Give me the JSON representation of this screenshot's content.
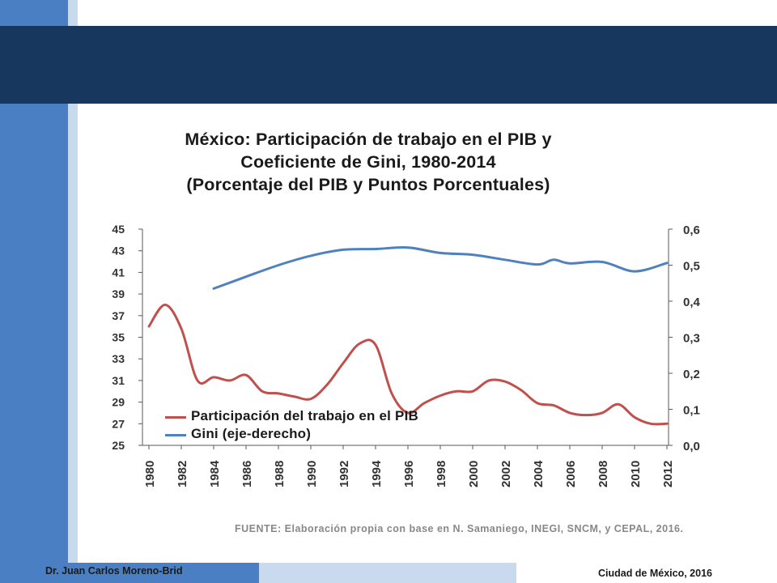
{
  "footer": {
    "author": "Dr. Juan Carlos Moreno-Brid",
    "place": "Ciudad de México, 2016"
  },
  "source": "FUENTE: Elaboración propia con base en N. Samaniego, INEGI, SNCM, y CEPAL, 2016.",
  "colors": {
    "labor_share": "#c0504d",
    "gini": "#4f81bd",
    "header": "#17375e",
    "accent": "#4a7fc4"
  },
  "chart_data": {
    "type": "line",
    "title_lines": [
      "México: Participación de trabajo en el PIB y",
      "Coeficiente de Gini, 1980-2014",
      "(Porcentaje del PIB y Puntos Porcentuales)"
    ],
    "x_tick_labels": [
      "1980",
      "1982",
      "1984",
      "1986",
      "1988",
      "1990",
      "1992",
      "1994",
      "1996",
      "1998",
      "2000",
      "2002",
      "2004",
      "2006",
      "2008",
      "2010",
      "2012"
    ],
    "y_left": {
      "min": 25,
      "max": 45,
      "ticks": [
        "25",
        "27",
        "29",
        "31",
        "33",
        "35",
        "37",
        "39",
        "41",
        "43",
        "45"
      ]
    },
    "y_right": {
      "min": 0,
      "max": 0.6,
      "ticks": [
        "0,0",
        "0,1",
        "0,2",
        "0,3",
        "0,4",
        "0,5",
        "0,6"
      ]
    },
    "legend_position": "bottom-left",
    "series": [
      {
        "name": "Participación del trabajo en el PIB",
        "axis": "left",
        "x": [
          1980,
          1981,
          1982,
          1983,
          1984,
          1985,
          1986,
          1987,
          1988,
          1989,
          1990,
          1991,
          1992,
          1993,
          1994,
          1995,
          1996,
          1997,
          1998,
          1999,
          2000,
          2001,
          2002,
          2003,
          2004,
          2005,
          2006,
          2007,
          2008,
          2009,
          2010,
          2011,
          2012
        ],
        "values": [
          36.0,
          38.0,
          35.8,
          31.0,
          31.3,
          31.0,
          31.5,
          30.0,
          29.8,
          29.5,
          29.3,
          30.6,
          32.6,
          34.4,
          34.3,
          29.8,
          28.0,
          28.9,
          29.6,
          30.0,
          30.0,
          31.0,
          30.9,
          30.1,
          28.9,
          28.7,
          28.0,
          27.8,
          28.0,
          28.8,
          27.6,
          27.0,
          27.0
        ]
      },
      {
        "name": "Gini (eje-derecho)",
        "axis": "right",
        "x": [
          1984,
          1986,
          1988,
          1990,
          1992,
          1994,
          1996,
          1998,
          2000,
          2002,
          2004,
          2005,
          2006,
          2008,
          2010,
          2012
        ],
        "values": [
          0.435,
          0.468,
          0.5,
          0.526,
          0.543,
          0.545,
          0.549,
          0.534,
          0.529,
          0.515,
          0.502,
          0.515,
          0.505,
          0.509,
          0.483,
          0.506
        ]
      }
    ]
  }
}
